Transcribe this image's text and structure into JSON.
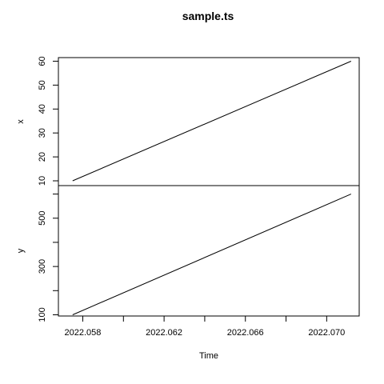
{
  "chart_data": {
    "type": "line",
    "title": "sample.ts",
    "xlabel": "Time",
    "x_ticks": [
      2022.058,
      2022.062,
      2022.066,
      2022.07
    ],
    "x_tick_labels": [
      "2022.058",
      "2022.062",
      "2022.066",
      "2022.070"
    ],
    "x_minor_ticks": [
      2022.06,
      2022.064,
      2022.068
    ],
    "xlim": [
      2022.0568,
      2022.0716
    ],
    "panels": [
      {
        "ylabel": "x",
        "ylim": [
          8,
          61.5
        ],
        "y_ticks": [
          10,
          20,
          30,
          40,
          50,
          60
        ],
        "y_tick_labels": [
          "10",
          "20",
          "30",
          "40",
          "50",
          "60"
        ],
        "series": [
          {
            "x": [
              2022.0575,
              2022.0712
            ],
            "y": [
              10,
              60
            ]
          }
        ]
      },
      {
        "ylabel": "y",
        "ylim": [
          95,
          635
        ],
        "y_ticks": [
          100,
          200,
          300,
          400,
          500,
          600
        ],
        "y_tick_labels": [
          "100",
          "",
          "300",
          "",
          "500",
          ""
        ],
        "series": [
          {
            "x": [
              2022.0575,
              2022.0712
            ],
            "y": [
              100,
              600
            ]
          }
        ]
      }
    ],
    "grid": false,
    "legend": "none"
  }
}
